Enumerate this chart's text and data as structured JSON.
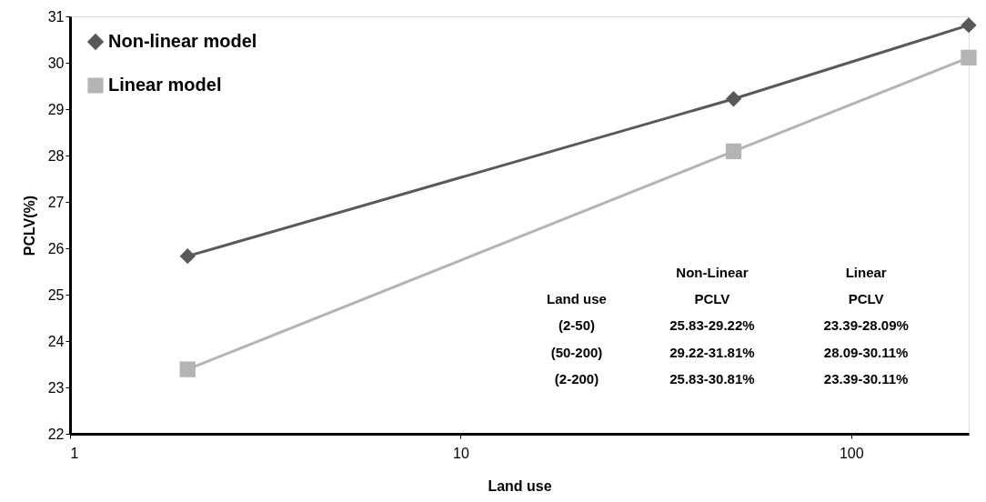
{
  "chart_data": {
    "type": "line",
    "xlabel": "Land use",
    "ylabel": "PCLV(%)",
    "x": [
      2,
      50,
      200
    ],
    "series": [
      {
        "name": "Non-linear model",
        "color": "#595959",
        "marker": "diamond",
        "values": [
          25.83,
          29.22,
          30.81
        ]
      },
      {
        "name": "Linear model",
        "color": "#b4b4b4",
        "marker": "square",
        "values": [
          23.39,
          28.09,
          30.11
        ]
      }
    ],
    "log": "x",
    "xlim": [
      1,
      200
    ],
    "xticks": [
      1,
      10,
      100
    ],
    "ylim": [
      22,
      31
    ],
    "yticks": [
      22,
      23,
      24,
      25,
      26,
      27,
      28,
      29,
      30,
      31
    ],
    "grid": false,
    "legend": "top left",
    "annotations": [
      "Non-Linear",
      "Linear",
      "Land use",
      "PCLV",
      "PCLV",
      "(2-50)",
      "25.83-29.22%",
      "23.39-28.09%",
      "(50-200)",
      "29.22-31.81%",
      "28.09-30.11%",
      "(2-200)",
      "25.83-30.81%",
      "23.39-30.11%"
    ]
  }
}
